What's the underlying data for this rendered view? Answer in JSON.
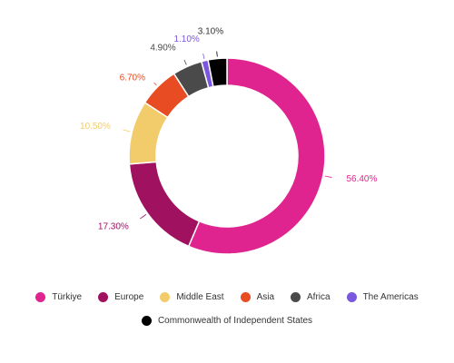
{
  "chart_data": {
    "type": "pie",
    "donut": true,
    "categories": [
      "Türkiye",
      "Europe",
      "Middle East",
      "Asia",
      "Africa",
      "The Americas",
      "Commonwealth of Independent States"
    ],
    "values": [
      56.4,
      17.3,
      10.5,
      6.7,
      4.9,
      1.1,
      3.1
    ],
    "data_labels": [
      "56.40%",
      "17.30%",
      "10.50%",
      "6.70%",
      "4.90%",
      "1.10%",
      "3.10%"
    ],
    "colors": [
      "#e0248f",
      "#a0115f",
      "#f2cc6b",
      "#e84c22",
      "#4a4a4a",
      "#7b57e0",
      "#000000"
    ],
    "legend_position": "bottom",
    "title": "",
    "xlabel": "",
    "ylabel": ""
  },
  "legend": {
    "row1": [
      {
        "label": "Türkiye",
        "color": "#e0248f"
      },
      {
        "label": "Europe",
        "color": "#a0115f"
      },
      {
        "label": "Middle East",
        "color": "#f2cc6b"
      },
      {
        "label": "Asia",
        "color": "#e84c22"
      },
      {
        "label": "Africa",
        "color": "#4a4a4a"
      },
      {
        "label": "The Americas",
        "color": "#7b57e0"
      }
    ],
    "row2": [
      {
        "label": "Commonwealth of Independent States",
        "color": "#000000"
      }
    ]
  }
}
